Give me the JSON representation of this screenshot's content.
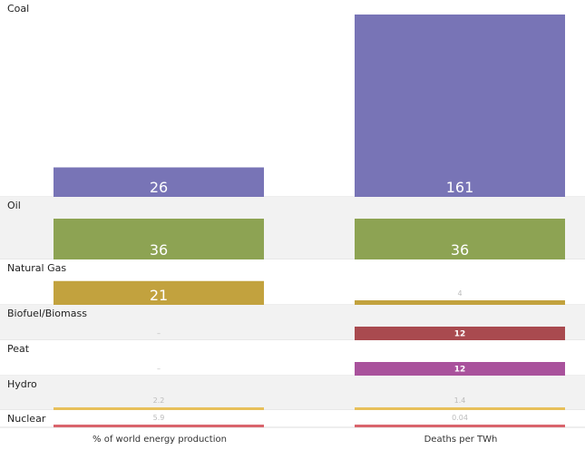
{
  "chart_data": {
    "type": "bar",
    "layout": "row-banded grouped bars",
    "columns": [
      "% of world energy production",
      "Deaths per TWh"
    ],
    "categories": [
      {
        "name": "Coal",
        "color": "#7874b6",
        "values": [
          26,
          161
        ],
        "labels": [
          "26",
          "161"
        ]
      },
      {
        "name": "Oil",
        "color": "#8da353",
        "values": [
          36,
          36
        ],
        "labels": [
          "36",
          "36"
        ]
      },
      {
        "name": "Natural Gas",
        "color": "#c2a23e",
        "values": [
          21,
          4
        ],
        "labels": [
          "21",
          "4"
        ]
      },
      {
        "name": "Biofuel/Biomass",
        "color": "#a94a4f",
        "values": [
          null,
          12
        ],
        "labels": [
          "–",
          "12"
        ]
      },
      {
        "name": "Peat",
        "color": "#a9529c",
        "values": [
          null,
          12
        ],
        "labels": [
          "–",
          "12"
        ]
      },
      {
        "name": "Hydro",
        "color": "#e8c05a",
        "values": [
          2.2,
          1.4
        ],
        "labels": [
          "2.2",
          "1.4"
        ]
      },
      {
        "name": "Nuclear",
        "color": "#d9646c",
        "values": [
          5.9,
          0.04
        ],
        "labels": [
          "5.9",
          "0.04"
        ]
      }
    ]
  }
}
